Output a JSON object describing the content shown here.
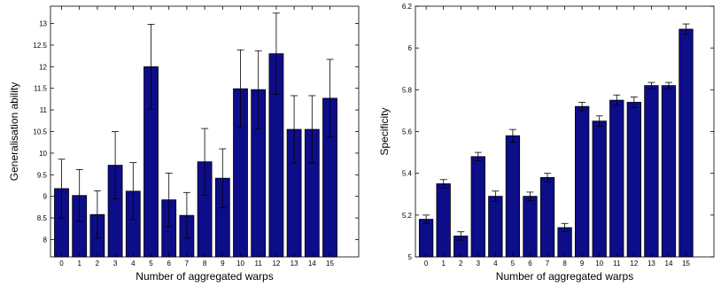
{
  "colors": {
    "bar_fill": "#0d0d8a",
    "bar_stroke": "#000000",
    "error_bar": "#000000",
    "axis": "#000000"
  },
  "chart_data": [
    {
      "type": "bar",
      "title": "",
      "xlabel": "Number of aggregated warps",
      "ylabel": "Generalisation ability",
      "categories": [
        "0",
        "1",
        "2",
        "3",
        "4",
        "5",
        "6",
        "7",
        "8",
        "9",
        "10",
        "11",
        "12",
        "13",
        "14",
        "15"
      ],
      "values": [
        9.18,
        9.02,
        8.58,
        9.72,
        9.12,
        12.0,
        8.92,
        8.56,
        9.8,
        9.42,
        11.49,
        11.47,
        12.3,
        10.55,
        10.55,
        11.27
      ],
      "error": [
        0.68,
        0.6,
        0.55,
        0.78,
        0.66,
        0.98,
        0.62,
        0.53,
        0.77,
        0.68,
        0.9,
        0.9,
        0.94,
        0.78,
        0.78,
        0.9
      ],
      "ylim": [
        7.6,
        13.4
      ],
      "yticks": [
        8,
        8.5,
        9,
        9.5,
        10,
        10.5,
        11,
        11.5,
        12,
        12.5,
        13
      ],
      "ytick_labels": [
        "8",
        "8.5",
        "9",
        "9.5",
        "10",
        "10.5",
        "11",
        "11.5",
        "12",
        "12.5",
        "13"
      ],
      "grid": false
    },
    {
      "type": "bar",
      "title": "",
      "xlabel": "Number of aggregated warps",
      "ylabel": "Specificity",
      "categories": [
        "0",
        "1",
        "2",
        "3",
        "4",
        "5",
        "6",
        "7",
        "8",
        "9",
        "10",
        "11",
        "12",
        "13",
        "14",
        "15"
      ],
      "values": [
        5.18,
        5.35,
        5.1,
        5.48,
        5.29,
        5.58,
        5.29,
        5.38,
        5.14,
        5.72,
        5.65,
        5.75,
        5.74,
        5.82,
        5.82,
        6.09
      ],
      "error": [
        0.02,
        0.02,
        0.02,
        0.02,
        0.025,
        0.03,
        0.02,
        0.02,
        0.02,
        0.02,
        0.025,
        0.025,
        0.025,
        0.015,
        0.015,
        0.025
      ],
      "ylim": [
        5.0,
        6.2
      ],
      "yticks": [
        5,
        5.2,
        5.4,
        5.6,
        5.8,
        6,
        6.2
      ],
      "ytick_labels": [
        "5",
        "5.2",
        "5.4",
        "5.6",
        "5.8",
        "6",
        "6.2"
      ],
      "grid": false
    }
  ]
}
